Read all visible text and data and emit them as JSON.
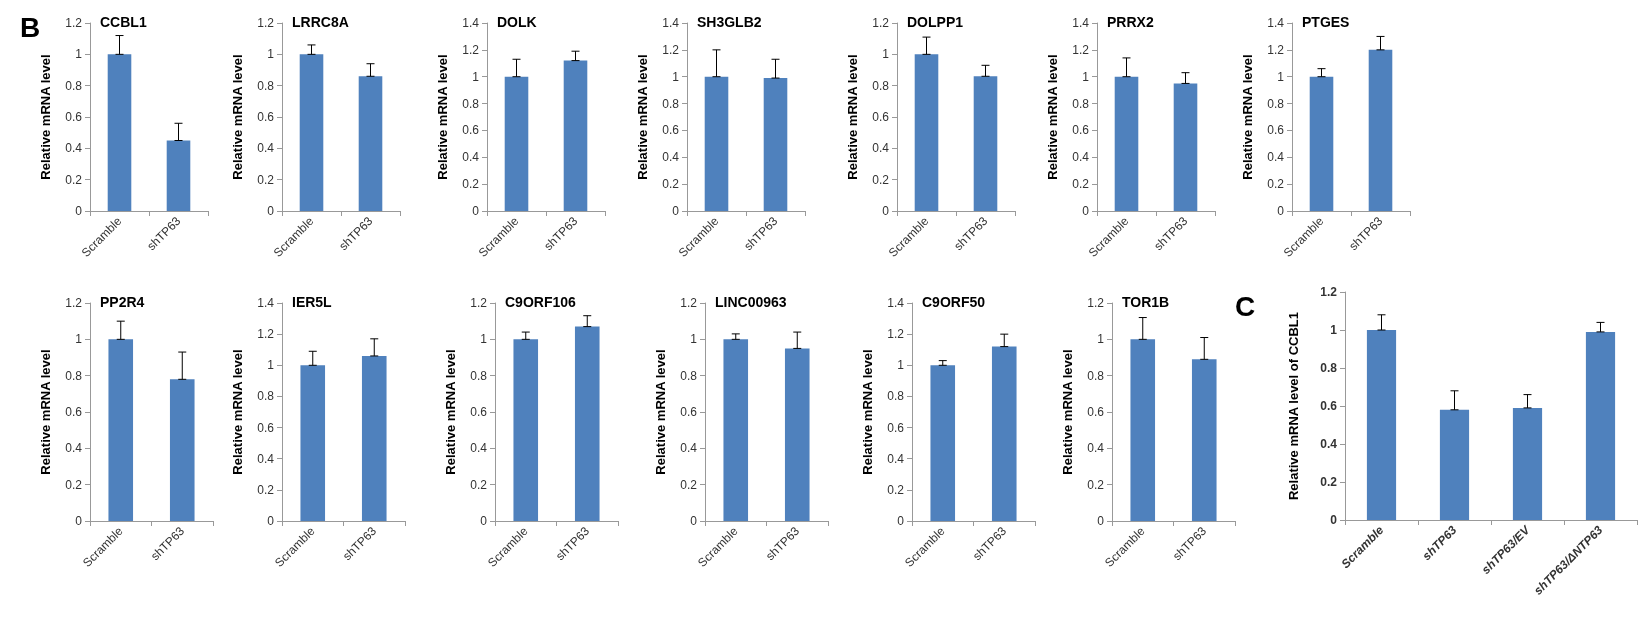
{
  "chart_data": [
    {
      "type": "bar",
      "title": "CCBL1",
      "ylabel": "Relative mRNA level",
      "annotations": [
        "B"
      ],
      "categories": [
        "Scramble",
        "shTP63"
      ],
      "values": [
        1.0,
        0.45
      ],
      "errors": [
        [
          1.0,
          1.12
        ],
        [
          0.45,
          0.56
        ]
      ],
      "color": "#4f81bd",
      "ylim": [
        0,
        1.2
      ],
      "yticks": [
        0,
        0.2,
        0.4,
        0.6,
        0.8,
        1,
        1.2
      ]
    },
    {
      "type": "bar",
      "title": "LRRC8A",
      "ylabel": "Relative mRNA level",
      "categories": [
        "Scramble",
        "shTP63"
      ],
      "values": [
        1.0,
        0.86
      ],
      "errors": [
        [
          1.0,
          1.06
        ],
        [
          0.86,
          0.94
        ]
      ],
      "color": "#4f81bd",
      "ylim": [
        0,
        1.2
      ],
      "yticks": [
        0,
        0.2,
        0.4,
        0.6,
        0.8,
        1,
        1.2
      ]
    },
    {
      "type": "bar",
      "title": "DOLK",
      "ylabel": "Relative mRNA level",
      "categories": [
        "Scramble",
        "shTP63"
      ],
      "values": [
        1.0,
        1.12
      ],
      "errors": [
        [
          1.0,
          1.13
        ],
        [
          1.12,
          1.19
        ]
      ],
      "color": "#4f81bd",
      "ylim": [
        0,
        1.4
      ],
      "yticks": [
        0,
        0.2,
        0.4,
        0.6,
        0.8,
        1,
        1.2,
        1.4
      ]
    },
    {
      "type": "bar",
      "title": "SH3GLB2",
      "ylabel": "Relative mRNA level",
      "categories": [
        "Scramble",
        "shTP63"
      ],
      "values": [
        1.0,
        0.99
      ],
      "errors": [
        [
          1.0,
          1.2
        ],
        [
          0.99,
          1.13
        ]
      ],
      "color": "#4f81bd",
      "ylim": [
        0,
        1.4
      ],
      "yticks": [
        0,
        0.2,
        0.4,
        0.6,
        0.8,
        1,
        1.2,
        1.4
      ]
    },
    {
      "type": "bar",
      "title": "DOLPP1",
      "ylabel": "Relative mRNA level",
      "categories": [
        "Scramble",
        "shTP63"
      ],
      "values": [
        1.0,
        0.86
      ],
      "errors": [
        [
          1.0,
          1.11
        ],
        [
          0.86,
          0.93
        ]
      ],
      "color": "#4f81bd",
      "ylim": [
        0,
        1.2
      ],
      "yticks": [
        0,
        0.2,
        0.4,
        0.6,
        0.8,
        1,
        1.2
      ]
    },
    {
      "type": "bar",
      "title": "PRRX2",
      "ylabel": "Relative mRNA level",
      "categories": [
        "Scramble",
        "shTP63"
      ],
      "values": [
        1.0,
        0.95
      ],
      "errors": [
        [
          1.0,
          1.14
        ],
        [
          0.95,
          1.03
        ]
      ],
      "color": "#4f81bd",
      "ylim": [
        0,
        1.4
      ],
      "yticks": [
        0,
        0.2,
        0.4,
        0.6,
        0.8,
        1,
        1.2,
        1.4
      ]
    },
    {
      "type": "bar",
      "title": "PTGES",
      "ylabel": "Relative mRNA level",
      "categories": [
        "Scramble",
        "shTP63"
      ],
      "values": [
        1.0,
        1.2
      ],
      "errors": [
        [
          1.0,
          1.06
        ],
        [
          1.2,
          1.3
        ]
      ],
      "color": "#4f81bd",
      "ylim": [
        0,
        1.4
      ],
      "yticks": [
        0,
        0.2,
        0.4,
        0.6,
        0.8,
        1,
        1.2,
        1.4
      ]
    },
    {
      "type": "bar",
      "title": "PP2R4",
      "ylabel": "Relative mRNA level",
      "categories": [
        "Scramble",
        "shTP63"
      ],
      "values": [
        1.0,
        0.78
      ],
      "errors": [
        [
          1.0,
          1.1
        ],
        [
          0.78,
          0.93
        ]
      ],
      "color": "#4f81bd",
      "ylim": [
        0,
        1.2
      ],
      "yticks": [
        0,
        0.2,
        0.4,
        0.6,
        0.8,
        1,
        1.2
      ]
    },
    {
      "type": "bar",
      "title": "IER5L",
      "ylabel": "Relative mRNA level",
      "categories": [
        "Scramble",
        "shTP63"
      ],
      "values": [
        1.0,
        1.06
      ],
      "errors": [
        [
          1.0,
          1.09
        ],
        [
          1.06,
          1.17
        ]
      ],
      "color": "#4f81bd",
      "ylim": [
        0,
        1.4
      ],
      "yticks": [
        0,
        0.2,
        0.4,
        0.6,
        0.8,
        1,
        1.2,
        1.4
      ]
    },
    {
      "type": "bar",
      "title": "C9ORF106",
      "ylabel": "Relative mRNA level",
      "categories": [
        "Scramble",
        "shTP63"
      ],
      "values": [
        1.0,
        1.07
      ],
      "errors": [
        [
          1.0,
          1.04
        ],
        [
          1.07,
          1.13
        ]
      ],
      "color": "#4f81bd",
      "ylim": [
        0,
        1.2
      ],
      "yticks": [
        0,
        0.2,
        0.4,
        0.6,
        0.8,
        1,
        1.2
      ]
    },
    {
      "type": "bar",
      "title": "LINC00963",
      "ylabel": "Relative mRNA level",
      "categories": [
        "Scramble",
        "shTP63"
      ],
      "values": [
        1.0,
        0.95
      ],
      "errors": [
        [
          1.0,
          1.03
        ],
        [
          0.95,
          1.04
        ]
      ],
      "color": "#4f81bd",
      "ylim": [
        0,
        1.2
      ],
      "yticks": [
        0,
        0.2,
        0.4,
        0.6,
        0.8,
        1,
        1.2
      ]
    },
    {
      "type": "bar",
      "title": "C9ORF50",
      "ylabel": "Relative mRNA level",
      "categories": [
        "Scramble",
        "shTP63"
      ],
      "values": [
        1.0,
        1.12
      ],
      "errors": [
        [
          1.0,
          1.03
        ],
        [
          1.12,
          1.2
        ]
      ],
      "color": "#4f81bd",
      "ylim": [
        0,
        1.4
      ],
      "yticks": [
        0,
        0.2,
        0.4,
        0.6,
        0.8,
        1,
        1.2,
        1.4
      ]
    },
    {
      "type": "bar",
      "title": "TOR1B",
      "ylabel": "Relative mRNA level",
      "categories": [
        "Scramble",
        "shTP63"
      ],
      "values": [
        1.0,
        0.89
      ],
      "errors": [
        [
          1.0,
          1.12
        ],
        [
          0.89,
          1.01
        ]
      ],
      "color": "#4f81bd",
      "ylim": [
        0,
        1.2
      ],
      "yticks": [
        0,
        0.2,
        0.4,
        0.6,
        0.8,
        1,
        1.2
      ]
    },
    {
      "type": "bar",
      "ylabel": "Relative mRNA level of CCBL1",
      "annotations": [
        "C"
      ],
      "categories": [
        "Scramble",
        "shTP63",
        "shTP63/EV",
        "shTP63/ΔNTP63"
      ],
      "values": [
        1.0,
        0.58,
        0.59,
        0.99
      ],
      "errors": [
        [
          1.0,
          1.08
        ],
        [
          0.58,
          0.68
        ],
        [
          0.59,
          0.66
        ],
        [
          0.99,
          1.04
        ]
      ],
      "color": "#4f81bd",
      "ylim": [
        0,
        1.2
      ],
      "yticks": [
        0,
        0.2,
        0.4,
        0.6,
        0.8,
        1,
        1.2
      ]
    }
  ]
}
